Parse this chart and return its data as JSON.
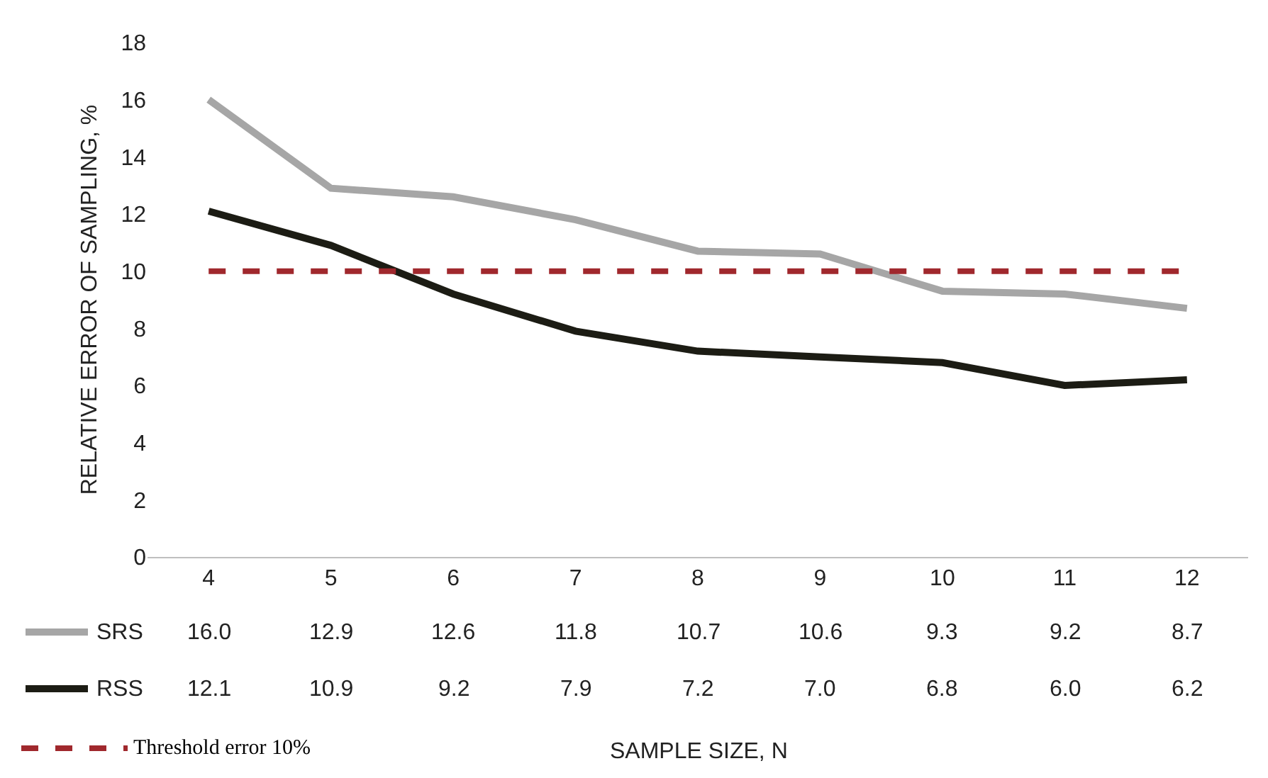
{
  "chart_data": {
    "type": "line",
    "annotations": [
      "SAMPLE SIZE, N"
    ],
    "ylabel": "RELATIVE ERROR OF SAMPLING, %",
    "categories": [
      "4",
      "5",
      "6",
      "7",
      "8",
      "9",
      "10",
      "11",
      "12"
    ],
    "series": [
      {
        "name": "SRS",
        "color": "#a6a6a6",
        "values": [
          16.0,
          12.9,
          12.6,
          11.8,
          10.7,
          10.6,
          9.3,
          9.2,
          8.7
        ],
        "value_labels": [
          "16.0",
          "12.9",
          "12.6",
          "11.8",
          "10.7",
          "10.6",
          "9.3",
          "9.2",
          "8.7"
        ]
      },
      {
        "name": "RSS",
        "color": "#1c1c14",
        "values": [
          12.1,
          10.9,
          9.2,
          7.9,
          7.2,
          7.0,
          6.8,
          6.0,
          6.2
        ],
        "value_labels": [
          "12.1",
          "10.9",
          "9.2",
          "7.9",
          "7.2",
          "7.0",
          "6.8",
          "6.0",
          "6.2"
        ]
      }
    ],
    "ylim": [
      0,
      18
    ],
    "yticks": [
      0,
      2,
      4,
      6,
      8,
      10,
      12,
      14,
      16,
      18
    ],
    "ref_lines": [
      {
        "axis": "y",
        "value": 10,
        "label": "Threshold error 10%",
        "color": "#a0282d",
        "line_style": "dashed"
      }
    ],
    "line_style": "solid",
    "data_labels": true,
    "legend": "bottom left"
  }
}
